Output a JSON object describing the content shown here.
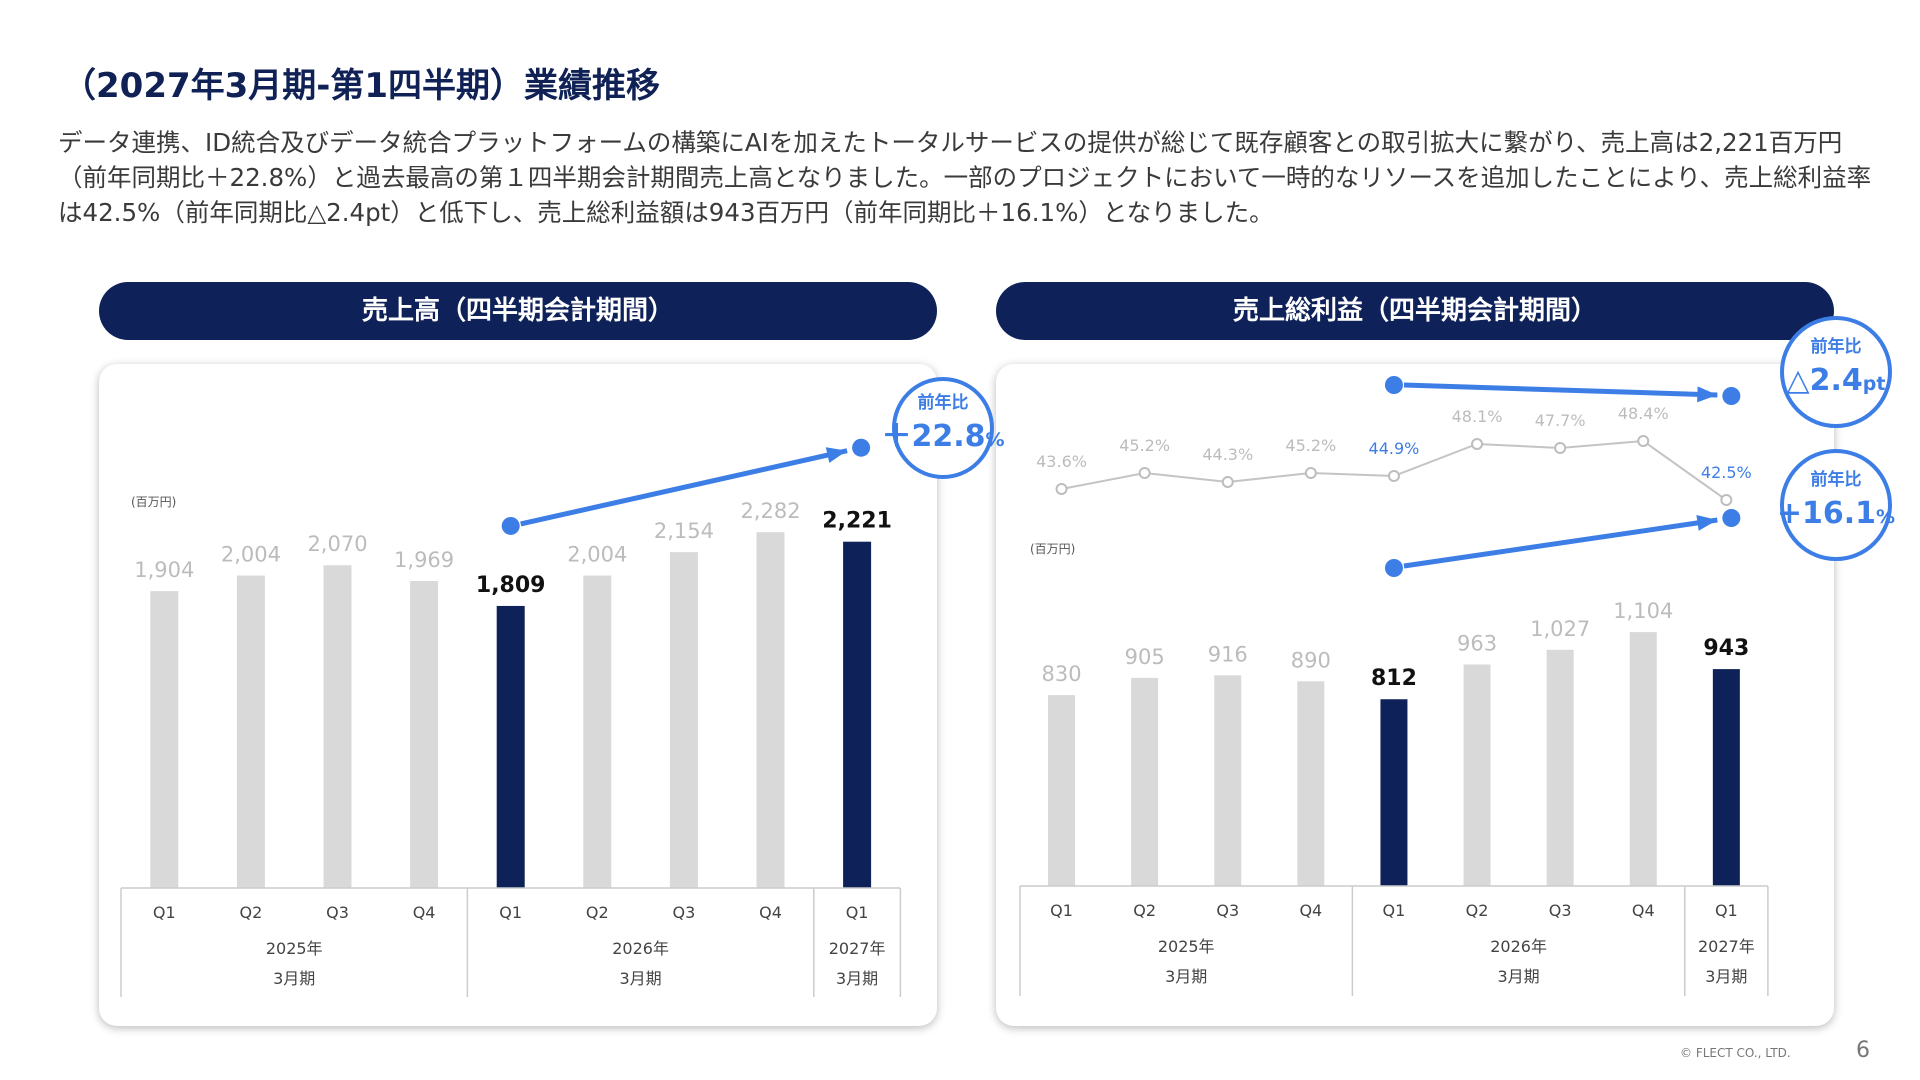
{
  "page": {
    "title": "（2027年3月期-第1四半期）業績推移",
    "description": "データ連携、ID統合及びデータ統合プラットフォームの構築にAIを加えたトータルサービスの提供が総じて既存顧客との取引拡大に繋がり、売上高は2,221百万円（前年同期比＋22.8%）と過去最高の第１四半期会計期間売上高となりました。一部のプロジェクトにおいて一時的なリソースを追加したことにより、売上総利益率は42.5%（前年同期比△2.4pt）と低下し、売上総利益額は943百万円（前年同期比＋16.1%）となりました。",
    "copyright": "© FLECT CO., LTD.",
    "page_number": "6"
  },
  "colors": {
    "navy": "#0e2158",
    "gray_bar": "#d9d9d9",
    "blue": "#3d7ee6",
    "gray_text": "#bcbcbc"
  },
  "chart_data": [
    {
      "type": "bar",
      "header": "売上高（四半期会計期間）",
      "unit_label": "(百万円)",
      "categories": [
        "Q1",
        "Q2",
        "Q3",
        "Q4",
        "Q1",
        "Q2",
        "Q3",
        "Q4",
        "Q1"
      ],
      "groups": [
        {
          "label1": "2025年",
          "label2": "3月期",
          "span": 4
        },
        {
          "label1": "2026年",
          "label2": "3月期",
          "span": 4
        },
        {
          "label1": "2027年",
          "label2": "3月期",
          "span": 1
        }
      ],
      "values": [
        1904,
        2004,
        2070,
        1969,
        1809,
        2004,
        2154,
        2282,
        2221
      ],
      "value_labels": [
        "1,904",
        "2,004",
        "2,070",
        "1,969",
        "1,809",
        "2,004",
        "2,154",
        "2,282",
        "2,221"
      ],
      "highlight": [
        4,
        8
      ],
      "ylim": [
        0,
        2450
      ],
      "yoy": {
        "label": "前年比",
        "value": "＋22.8",
        "unit": "%",
        "from_index": 4,
        "to_index": 8
      }
    },
    {
      "type": "bar+line",
      "header": "売上総利益（四半期会計期間）",
      "unit_label": "(百万円)",
      "categories": [
        "Q1",
        "Q2",
        "Q3",
        "Q4",
        "Q1",
        "Q2",
        "Q3",
        "Q4",
        "Q1"
      ],
      "groups": [
        {
          "label1": "2025年",
          "label2": "3月期",
          "span": 4
        },
        {
          "label1": "2026年",
          "label2": "3月期",
          "span": 4
        },
        {
          "label1": "2027年",
          "label2": "3月期",
          "span": 1
        }
      ],
      "values": [
        830,
        905,
        916,
        890,
        812,
        963,
        1027,
        1104,
        943
      ],
      "value_labels": [
        "830",
        "905",
        "916",
        "890",
        "812",
        "963",
        "1,027",
        "1,104",
        "943"
      ],
      "highlight": [
        4,
        8
      ],
      "ylim": [
        0,
        1400
      ],
      "margin_rate": {
        "values": [
          43.6,
          45.2,
          44.3,
          45.2,
          44.9,
          48.1,
          47.7,
          48.4,
          42.5
        ],
        "value_labels": [
          "43.6%",
          "45.2%",
          "44.3%",
          "45.2%",
          "44.9%",
          "48.1%",
          "47.7%",
          "48.4%",
          "42.5%"
        ],
        "ylim": [
          42,
          49.5
        ]
      },
      "yoy_rate": {
        "label": "前年比",
        "value": "△2.4",
        "unit": "pt",
        "from_index": 4,
        "to_index": 8
      },
      "yoy_profit": {
        "label": "前年比",
        "value": "+16.1",
        "unit": "%",
        "from_index": 4,
        "to_index": 8
      }
    }
  ]
}
